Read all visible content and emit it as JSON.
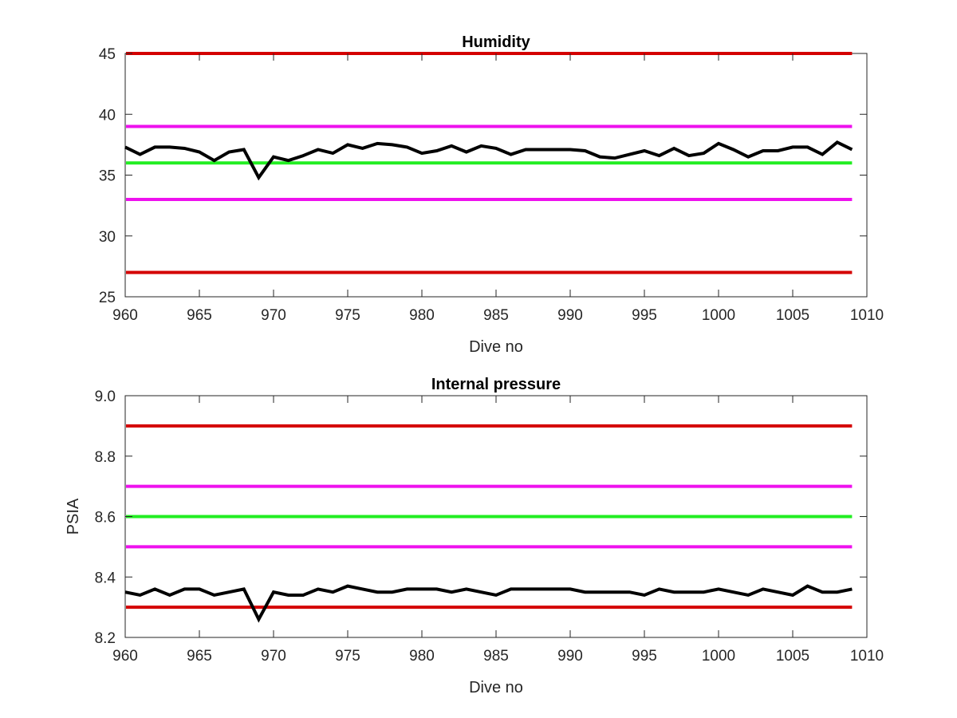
{
  "chart_data": [
    {
      "type": "line",
      "title": "Humidity",
      "xlabel": "Dive no",
      "ylabel": "",
      "xlim": [
        960,
        1010
      ],
      "ylim": [
        25,
        45
      ],
      "xticks": [
        960,
        965,
        970,
        975,
        980,
        985,
        990,
        995,
        1000,
        1005,
        1010
      ],
      "yticks": [
        25,
        30,
        35,
        40,
        45
      ],
      "grid": false,
      "reference_lines": [
        {
          "y": 45,
          "color": "#d40000"
        },
        {
          "y": 39,
          "color": "#ee11ee"
        },
        {
          "y": 36,
          "color": "#22ee22"
        },
        {
          "y": 33,
          "color": "#ee11ee"
        },
        {
          "y": 27,
          "color": "#d40000"
        }
      ],
      "series": [
        {
          "color": "#000000",
          "x": [
            960,
            961,
            962,
            963,
            964,
            965,
            966,
            967,
            968,
            969,
            970,
            971,
            972,
            973,
            974,
            975,
            976,
            977,
            978,
            979,
            980,
            981,
            982,
            983,
            984,
            985,
            986,
            987,
            988,
            989,
            990,
            991,
            992,
            993,
            994,
            995,
            996,
            997,
            998,
            999,
            1000,
            1001,
            1002,
            1003,
            1004,
            1005,
            1006,
            1007,
            1008,
            1009
          ],
          "values": [
            37.3,
            36.7,
            37.3,
            37.3,
            37.2,
            36.9,
            36.2,
            36.9,
            37.1,
            34.8,
            36.5,
            36.2,
            36.6,
            37.1,
            36.8,
            37.5,
            37.2,
            37.6,
            37.5,
            37.3,
            36.8,
            37.0,
            37.4,
            36.9,
            37.4,
            37.2,
            36.7,
            37.1,
            37.1,
            37.1,
            37.1,
            37.0,
            36.5,
            36.4,
            36.7,
            37.0,
            36.6,
            37.2,
            36.6,
            36.8,
            37.6,
            37.1,
            36.5,
            37.0,
            37.0,
            37.3,
            37.3,
            36.7,
            37.7,
            37.1
          ]
        }
      ]
    },
    {
      "type": "line",
      "title": "Internal pressure",
      "xlabel": "Dive no",
      "ylabel": "PSIA",
      "xlim": [
        960,
        1010
      ],
      "ylim": [
        8.2,
        9
      ],
      "xticks": [
        960,
        965,
        970,
        975,
        980,
        985,
        990,
        995,
        1000,
        1005,
        1010
      ],
      "yticks": [
        8.2,
        8.4,
        8.6,
        8.8,
        9
      ],
      "grid": false,
      "reference_lines": [
        {
          "y": 8.9,
          "color": "#d40000"
        },
        {
          "y": 8.7,
          "color": "#ee11ee"
        },
        {
          "y": 8.6,
          "color": "#22ee22"
        },
        {
          "y": 8.5,
          "color": "#ee11ee"
        },
        {
          "y": 8.3,
          "color": "#d40000"
        }
      ],
      "series": [
        {
          "color": "#000000",
          "x": [
            960,
            961,
            962,
            963,
            964,
            965,
            966,
            967,
            968,
            969,
            970,
            971,
            972,
            973,
            974,
            975,
            976,
            977,
            978,
            979,
            980,
            981,
            982,
            983,
            984,
            985,
            986,
            987,
            988,
            989,
            990,
            991,
            992,
            993,
            994,
            995,
            996,
            997,
            998,
            999,
            1000,
            1001,
            1002,
            1003,
            1004,
            1005,
            1006,
            1007,
            1008,
            1009
          ],
          "values": [
            8.35,
            8.34,
            8.36,
            8.34,
            8.36,
            8.36,
            8.34,
            8.35,
            8.36,
            8.26,
            8.35,
            8.34,
            8.34,
            8.36,
            8.35,
            8.37,
            8.36,
            8.35,
            8.35,
            8.36,
            8.36,
            8.36,
            8.35,
            8.36,
            8.35,
            8.34,
            8.36,
            8.36,
            8.36,
            8.36,
            8.36,
            8.35,
            8.35,
            8.35,
            8.35,
            8.34,
            8.36,
            8.35,
            8.35,
            8.35,
            8.36,
            8.35,
            8.34,
            8.36,
            8.35,
            8.34,
            8.37,
            8.35,
            8.35,
            8.36
          ]
        }
      ]
    }
  ]
}
